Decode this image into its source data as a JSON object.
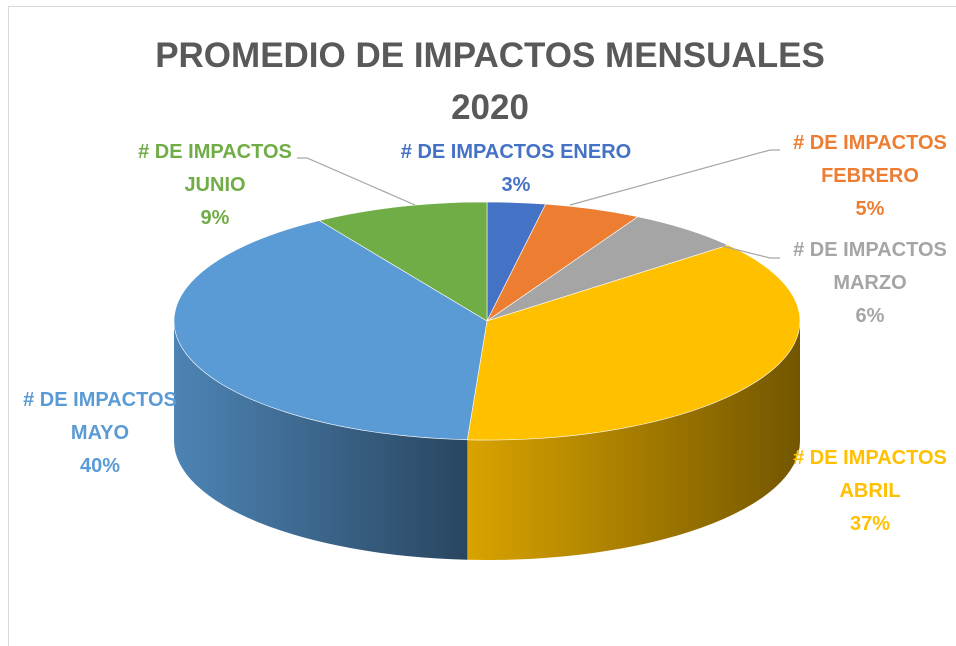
{
  "chart_data": {
    "type": "pie",
    "title": "PROMEDIO DE IMPACTOS MENSUALES 2020",
    "categories": [
      "# DE IMPACTOS ENERO",
      "# DE IMPACTOS FEBRERO",
      "# DE IMPACTOS MARZO",
      "# DE IMPACTOS ABRIL",
      "# DE IMPACTOS MAYO",
      "# DE IMPACTOS JUNIO"
    ],
    "values": [
      3,
      5,
      6,
      37,
      40,
      9
    ],
    "value_labels": [
      "3%",
      "5%",
      "6%",
      "37%",
      "40%",
      "9%"
    ],
    "colors": [
      "#4472c4",
      "#ed7d31",
      "#a5a5a5",
      "#ffc000",
      "#5b9bd5",
      "#70ad47"
    ]
  }
}
